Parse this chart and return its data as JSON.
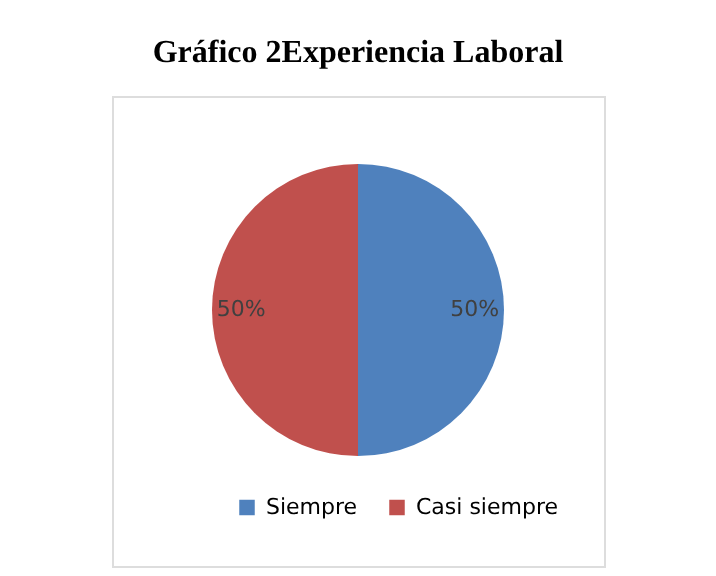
{
  "chart_data": {
    "type": "pie",
    "title": "Gráfico 2Experiencia Laboral",
    "categories": [
      "Siempre",
      "Casi siempre"
    ],
    "values": [
      50,
      50
    ],
    "colors": [
      "#4f81bd",
      "#c0504d"
    ],
    "value_labels": [
      "50%",
      "50%"
    ],
    "legend": "bottom"
  }
}
